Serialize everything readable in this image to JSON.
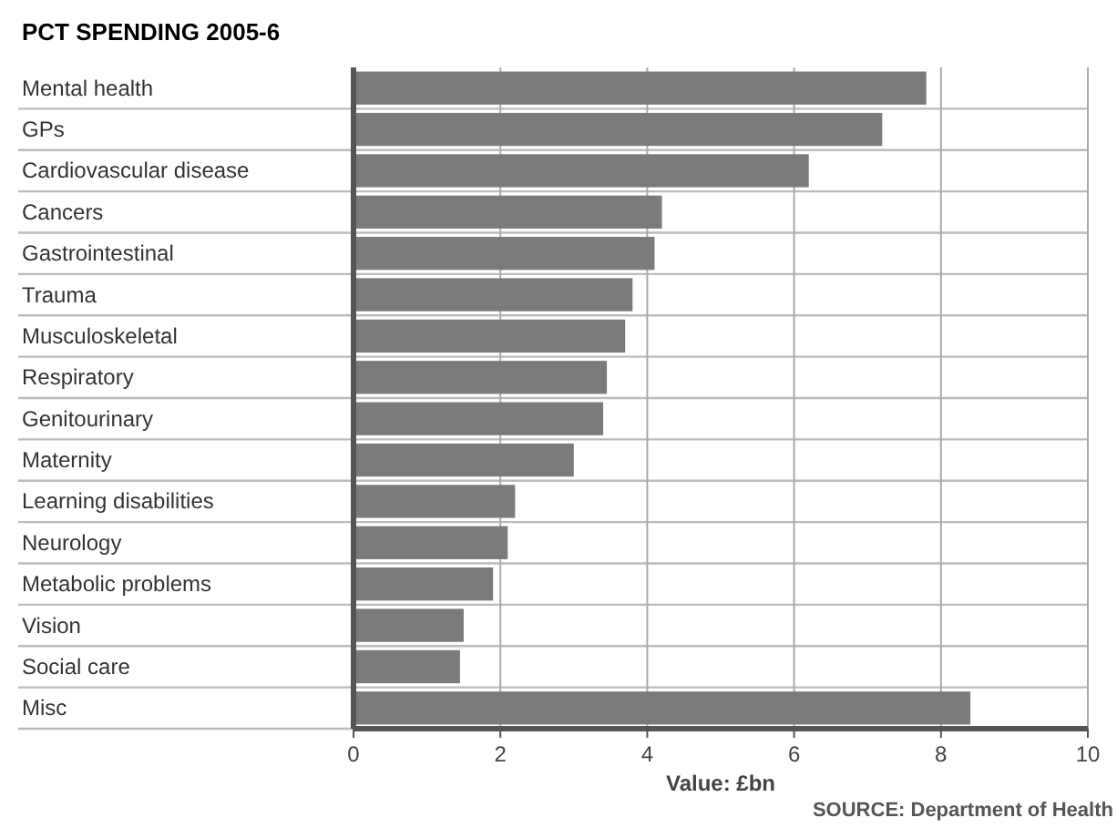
{
  "chart_data": {
    "type": "bar",
    "orientation": "horizontal",
    "title": "PCT SPENDING 2005-6",
    "xlabel": "Value: £bn",
    "categories": [
      "Mental health",
      "GPs",
      "Cardiovascular disease",
      "Cancers",
      "Gastrointestinal",
      "Trauma",
      "Musculoskeletal",
      "Respiratory",
      "Genitourinary",
      "Maternity",
      "Learning disabilities",
      "Neurology",
      "Metabolic problems",
      "Vision",
      "Social care",
      "Misc"
    ],
    "values": [
      7.8,
      7.2,
      6.2,
      4.2,
      4.1,
      3.8,
      3.7,
      3.45,
      3.4,
      3.0,
      2.2,
      2.1,
      1.9,
      1.5,
      1.45,
      8.4
    ],
    "color": "#7b7b7d",
    "xlim": [
      0,
      10
    ],
    "xticks": [
      0,
      2,
      4,
      6,
      8,
      10
    ],
    "grid": "x",
    "annotations": [
      "SOURCE: Department of Health"
    ]
  }
}
